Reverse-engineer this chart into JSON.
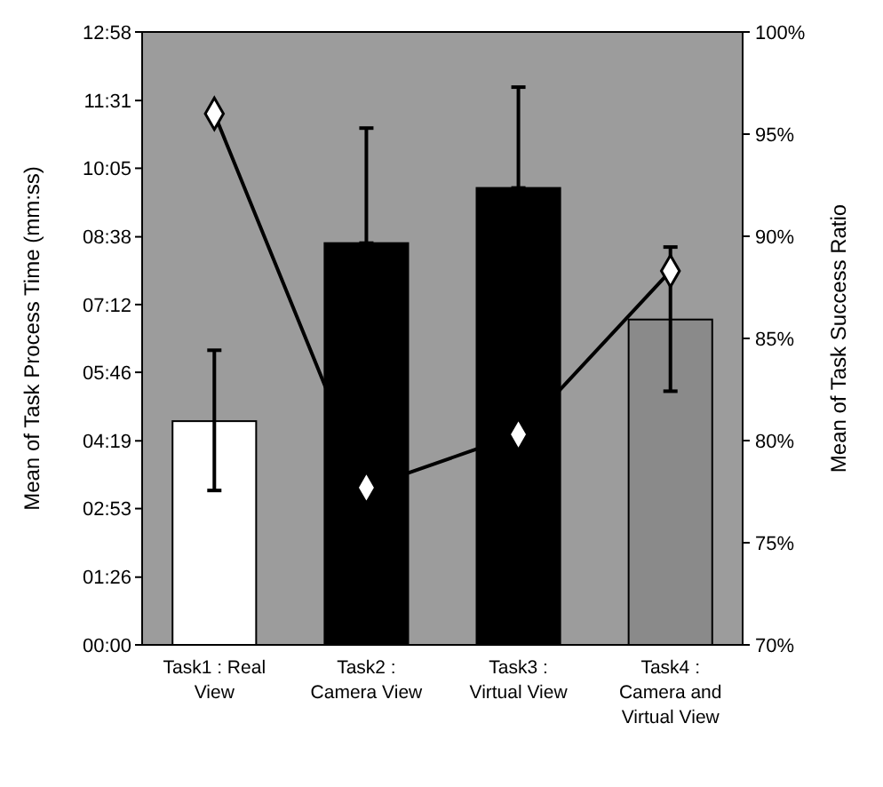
{
  "chart_data": {
    "type": "bar",
    "ylabel": "Mean of Task Process Time (mm:ss)",
    "y2label": "Mean of Task Success Ratio",
    "categories": [
      "Task1 : Real View",
      "Task2 : Camera View",
      "Task3 : Virtual View",
      "Task4 : Camera and Virtual View"
    ],
    "series": [
      {
        "colors": [
          "#ffffff",
          "#000000",
          "#000000",
          "#8a8a8a"
        ],
        "values": [
          284,
          510,
          580,
          413
        ],
        "errors": [
          [
            196,
            374
          ],
          [
            510,
            656
          ],
          [
            580,
            708
          ],
          [
            322,
            505
          ]
        ]
      },
      {
        "type": "line",
        "axis": "y2",
        "color": "#000000",
        "marker": "diamond",
        "values": [
          96,
          77.7,
          80.3,
          88.3
        ]
      }
    ],
    "ylim": [
      0,
      778
    ],
    "yticks": [
      {
        "value": 0,
        "label": "00:00"
      },
      {
        "value": 86,
        "label": "01:26"
      },
      {
        "value": 173,
        "label": "02:53"
      },
      {
        "value": 259,
        "label": "04:19"
      },
      {
        "value": 346,
        "label": "05:46"
      },
      {
        "value": 432,
        "label": "07:12"
      },
      {
        "value": 518,
        "label": "08:38"
      },
      {
        "value": 605,
        "label": "10:05"
      },
      {
        "value": 691,
        "label": "11:31"
      },
      {
        "value": 778,
        "label": "12:58"
      }
    ],
    "y2lim": [
      70,
      100
    ],
    "y2ticks": [
      {
        "value": 70,
        "label": "70%"
      },
      {
        "value": 75,
        "label": "75%"
      },
      {
        "value": 80,
        "label": "80%"
      },
      {
        "value": 85,
        "label": "85%"
      },
      {
        "value": 90,
        "label": "90%"
      },
      {
        "value": 95,
        "label": "95%"
      },
      {
        "value": 100,
        "label": "100%"
      }
    ],
    "grid": false
  }
}
